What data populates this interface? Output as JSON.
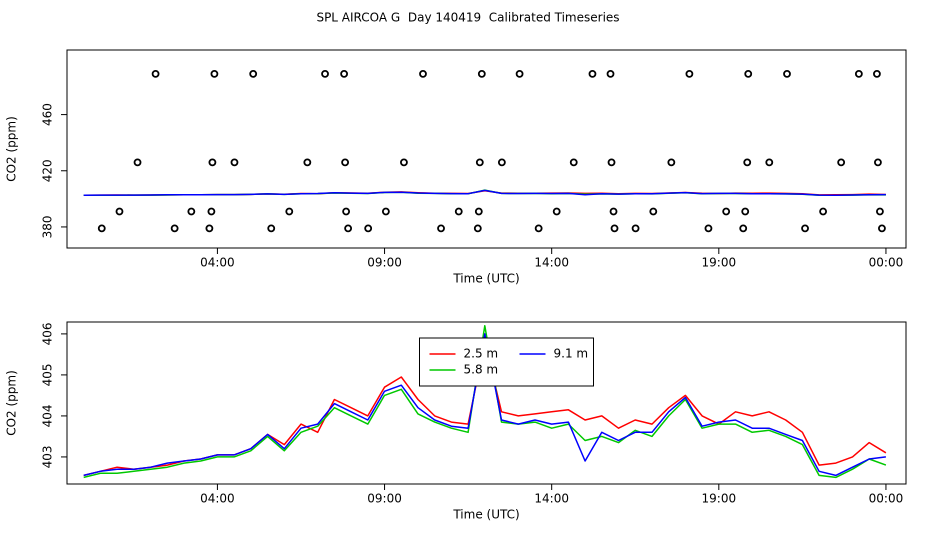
{
  "title": "SPL AIRCOA G  Day 140419  Calibrated Timeseries",
  "chart_data": [
    {
      "type": "scatter",
      "color": "#000000",
      "xlabel": "Time (UTC)",
      "ylabel": "CO2 (ppm)",
      "xlim": [
        -0.5,
        24.6
      ],
      "ylim": [
        365,
        506
      ],
      "xticks": [
        {
          "value": 4,
          "label": "04:00"
        },
        {
          "value": 9,
          "label": "09:00"
        },
        {
          "value": 14,
          "label": "14:00"
        },
        {
          "value": 19,
          "label": "19:00"
        },
        {
          "value": 24,
          "label": "00:00"
        }
      ],
      "yticks": [
        380,
        420,
        460
      ],
      "x": [
        2.15,
        3.91,
        5.07,
        7.22,
        7.79,
        10.15,
        11.91,
        13.04,
        15.22,
        15.76,
        18.12,
        19.88,
        21.04,
        23.19,
        23.73,
        1.61,
        3.85,
        4.51,
        6.69,
        7.82,
        9.58,
        11.85,
        12.51,
        14.66,
        15.79,
        17.58,
        19.85,
        20.51,
        22.66,
        23.76,
        1.07,
        3.22,
        3.82,
        6.15,
        7.85,
        9.04,
        11.22,
        11.82,
        14.15,
        15.85,
        17.04,
        19.22,
        19.79,
        22.12,
        23.82,
        0.54,
        2.72,
        3.76,
        5.61,
        7.91,
        8.51,
        10.69,
        11.79,
        13.61,
        15.88,
        16.51,
        18.69,
        19.73,
        21.58,
        23.88
      ],
      "y": [
        489,
        489,
        489,
        489,
        489,
        489,
        489,
        489,
        489,
        489,
        489,
        489,
        489,
        489,
        489,
        426,
        426,
        426,
        426,
        426,
        426,
        426,
        426,
        426,
        426,
        426,
        426,
        426,
        426,
        426,
        391,
        391,
        391,
        391,
        391,
        391,
        391,
        391,
        391,
        391,
        391,
        391,
        391,
        391,
        391,
        379,
        379,
        379,
        379,
        379,
        379,
        379,
        379,
        379,
        379,
        379,
        379,
        379,
        379,
        379
      ]
    },
    {
      "type": "line",
      "xlabel": "Time (UTC)",
      "ylabel": "CO2 (ppm)",
      "legend": "top",
      "xlim": [
        -0.5,
        24.6
      ],
      "ylim": [
        402.34,
        406.29
      ],
      "xticks": [
        {
          "value": 4,
          "label": "04:00"
        },
        {
          "value": 9,
          "label": "09:00"
        },
        {
          "value": 14,
          "label": "14:00"
        },
        {
          "value": 19,
          "label": "19:00"
        },
        {
          "value": 24,
          "label": "00:00"
        }
      ],
      "yticks": [
        403,
        404,
        405,
        406
      ],
      "x": [
        0,
        0.5,
        1,
        1.5,
        2,
        2.5,
        3,
        3.5,
        4,
        4.5,
        5,
        5.5,
        6,
        6.5,
        7,
        7.5,
        8,
        8.5,
        9,
        9.5,
        10,
        10.5,
        11,
        11.5,
        12,
        12.5,
        13,
        13.5,
        14,
        14.5,
        15,
        15.5,
        16,
        16.5,
        17,
        17.5,
        18,
        18.5,
        19,
        19.5,
        20,
        20.5,
        21,
        21.5,
        22,
        22.5,
        23,
        23.5,
        24
      ],
      "series": [
        {
          "name": "2.5 m",
          "color": "#ff0000",
          "values": [
            402.55,
            402.65,
            402.75,
            402.7,
            402.75,
            402.8,
            402.9,
            402.95,
            403.05,
            403.05,
            403.2,
            403.55,
            403.3,
            403.8,
            403.6,
            404.4,
            404.2,
            404.0,
            404.7,
            404.95,
            404.4,
            404.0,
            403.85,
            403.8,
            405.8,
            404.1,
            404.0,
            404.05,
            404.1,
            404.15,
            403.9,
            404.0,
            403.7,
            403.9,
            403.8,
            404.2,
            404.5,
            404.0,
            403.8,
            404.1,
            404.0,
            404.1,
            403.9,
            403.6,
            402.8,
            402.85,
            403.0,
            403.35,
            403.1
          ]
        },
        {
          "name": "5.8 m",
          "color": "#00c800",
          "values": [
            402.5,
            402.6,
            402.6,
            402.65,
            402.7,
            402.75,
            402.85,
            402.9,
            403.0,
            403.0,
            403.15,
            403.5,
            403.15,
            403.6,
            403.75,
            404.2,
            404.0,
            403.8,
            404.5,
            404.65,
            404.05,
            403.85,
            403.7,
            403.6,
            406.2,
            403.85,
            403.8,
            403.85,
            403.7,
            403.8,
            403.4,
            403.5,
            403.35,
            403.65,
            403.5,
            404.0,
            404.4,
            403.7,
            403.8,
            403.8,
            403.6,
            403.65,
            403.5,
            403.3,
            402.55,
            402.5,
            402.7,
            402.95,
            402.8
          ]
        },
        {
          "name": "9.1 m",
          "color": "#0000ff",
          "values": [
            402.55,
            402.65,
            402.7,
            402.7,
            402.75,
            402.85,
            402.9,
            402.95,
            403.05,
            403.05,
            403.2,
            403.55,
            403.2,
            403.7,
            403.8,
            404.3,
            404.1,
            403.9,
            404.6,
            404.75,
            404.2,
            403.9,
            403.75,
            403.7,
            406.0,
            403.9,
            403.8,
            403.9,
            403.8,
            403.85,
            402.9,
            403.6,
            403.4,
            403.6,
            403.6,
            404.1,
            404.45,
            403.75,
            403.85,
            403.9,
            403.7,
            403.7,
            403.55,
            403.4,
            402.65,
            402.55,
            402.75,
            402.95,
            403.0
          ]
        }
      ]
    }
  ]
}
